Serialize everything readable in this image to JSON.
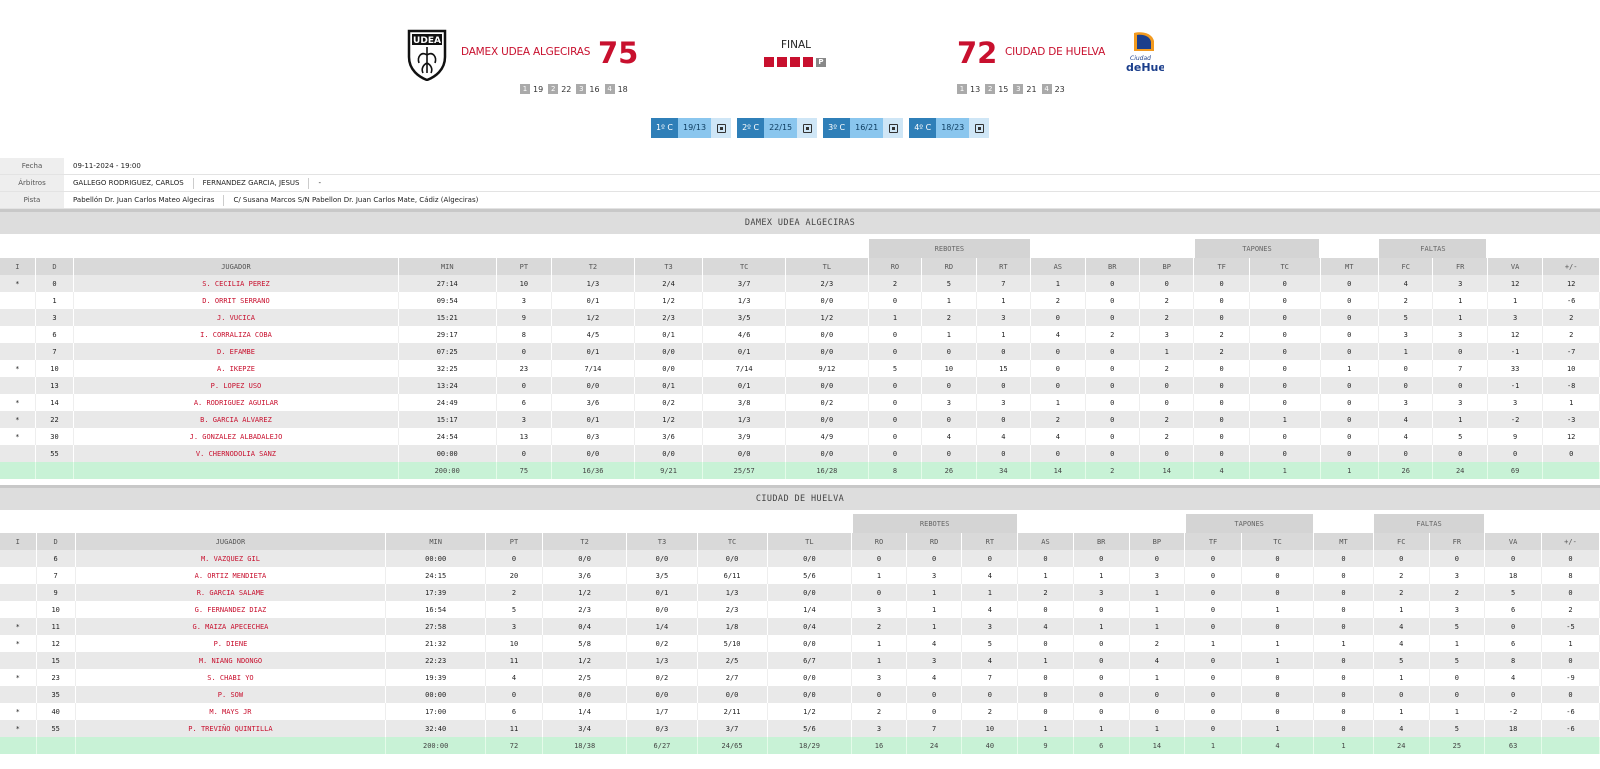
{
  "header": {
    "home": {
      "name": "DAMEX UDEA ALGECIRAS",
      "score": "75",
      "partials": [
        {
          "q": "1",
          "v": "19"
        },
        {
          "q": "2",
          "v": "22"
        },
        {
          "q": "3",
          "v": "16"
        },
        {
          "q": "4",
          "v": "18"
        }
      ]
    },
    "away": {
      "name": "CIUDAD DE HUELVA",
      "score": "72",
      "partials": [
        {
          "q": "1",
          "v": "13"
        },
        {
          "q": "2",
          "v": "15"
        },
        {
          "q": "3",
          "v": "21"
        },
        {
          "q": "4",
          "v": "23"
        }
      ]
    },
    "status": "FINAL",
    "period_marker": "P",
    "quarter_buttons": [
      {
        "label": "1º C",
        "score": "19/13"
      },
      {
        "label": "2º C",
        "score": "22/15"
      },
      {
        "label": "3º C",
        "score": "16/21"
      },
      {
        "label": "4º C",
        "score": "18/23"
      }
    ]
  },
  "info": {
    "fecha_label": "Fecha",
    "fecha": "09-11-2024 - 19:00",
    "arbitros_label": "Árbitros",
    "arbitros": [
      "GALLEGO RODRIGUEZ, CARLOS",
      "FERNANDEZ GARCIA, JESUS",
      "-"
    ],
    "pista_label": "Pista",
    "pista": [
      "Pabellón Dr. Juan Carlos Mateo Algeciras",
      "C/ Susana Marcos S/N Pabellon Dr. Juan Carlos Mate, Cádiz (Algeciras)"
    ]
  },
  "table_headers": {
    "groups": {
      "rebotes": "REBOTES",
      "tapones": "TAPONES",
      "faltas": "FALTAS"
    },
    "columns": [
      "I",
      "D",
      "JUGADOR",
      "MIN",
      "PT",
      "T2",
      "T3",
      "TC",
      "TL",
      "RO",
      "RD",
      "RT",
      "AS",
      "BR",
      "BP",
      "TF",
      "TC",
      "MT",
      "FC",
      "FR",
      "VA",
      "+/-"
    ]
  },
  "teams": [
    {
      "title": "DAMEX UDEA ALGECIRAS",
      "players": [
        [
          "*",
          "0",
          "S. CECILIA PEREZ",
          "27:14",
          "10",
          "1/3",
          "2/4",
          "3/7",
          "2/3",
          "2",
          "5",
          "7",
          "1",
          "0",
          "0",
          "0",
          "0",
          "0",
          "4",
          "3",
          "12",
          "12"
        ],
        [
          "",
          "1",
          "D. ORRIT SERRANO",
          "09:54",
          "3",
          "0/1",
          "1/2",
          "1/3",
          "0/0",
          "0",
          "1",
          "1",
          "2",
          "0",
          "2",
          "0",
          "0",
          "0",
          "2",
          "1",
          "1",
          "-6"
        ],
        [
          "",
          "3",
          "J. VUCICA",
          "15:21",
          "9",
          "1/2",
          "2/3",
          "3/5",
          "1/2",
          "1",
          "2",
          "3",
          "0",
          "0",
          "2",
          "0",
          "0",
          "0",
          "5",
          "1",
          "3",
          "2"
        ],
        [
          "",
          "6",
          "I. CORRALIZA COBA",
          "29:17",
          "8",
          "4/5",
          "0/1",
          "4/6",
          "0/0",
          "0",
          "1",
          "1",
          "4",
          "2",
          "3",
          "2",
          "0",
          "0",
          "3",
          "3",
          "12",
          "2"
        ],
        [
          "",
          "7",
          "D. EFAMBE",
          "07:25",
          "0",
          "0/1",
          "0/0",
          "0/1",
          "0/0",
          "0",
          "0",
          "0",
          "0",
          "0",
          "1",
          "2",
          "0",
          "0",
          "1",
          "0",
          "-1",
          "-7"
        ],
        [
          "*",
          "10",
          "A. IKEPZE",
          "32:25",
          "23",
          "7/14",
          "0/0",
          "7/14",
          "9/12",
          "5",
          "10",
          "15",
          "0",
          "0",
          "2",
          "0",
          "0",
          "1",
          "0",
          "7",
          "33",
          "10"
        ],
        [
          "",
          "13",
          "P. LOPEZ USO",
          "13:24",
          "0",
          "0/0",
          "0/1",
          "0/1",
          "0/0",
          "0",
          "0",
          "0",
          "0",
          "0",
          "0",
          "0",
          "0",
          "0",
          "0",
          "0",
          "-1",
          "-8"
        ],
        [
          "*",
          "14",
          "A. RODRIGUEZ AGUILAR",
          "24:49",
          "6",
          "3/6",
          "0/2",
          "3/8",
          "0/2",
          "0",
          "3",
          "3",
          "1",
          "0",
          "0",
          "0",
          "0",
          "0",
          "3",
          "3",
          "3",
          "1"
        ],
        [
          "*",
          "22",
          "B. GARCIA ALVAREZ",
          "15:17",
          "3",
          "0/1",
          "1/2",
          "1/3",
          "0/0",
          "0",
          "0",
          "0",
          "2",
          "0",
          "2",
          "0",
          "1",
          "0",
          "4",
          "1",
          "-2",
          "-3"
        ],
        [
          "*",
          "30",
          "J. GONZALEZ ALBADALEJO",
          "24:54",
          "13",
          "0/3",
          "3/6",
          "3/9",
          "4/9",
          "0",
          "4",
          "4",
          "4",
          "0",
          "2",
          "0",
          "0",
          "0",
          "4",
          "5",
          "9",
          "12"
        ],
        [
          "",
          "55",
          "V. CHERNODOLIA SANZ",
          "00:00",
          "0",
          "0/0",
          "0/0",
          "0/0",
          "0/0",
          "0",
          "0",
          "0",
          "0",
          "0",
          "0",
          "0",
          "0",
          "0",
          "0",
          "0",
          "0",
          "0"
        ]
      ],
      "totals": [
        "",
        "",
        "",
        "200:00",
        "75",
        "16/36",
        "9/21",
        "25/57",
        "16/28",
        "8",
        "26",
        "34",
        "14",
        "2",
        "14",
        "4",
        "1",
        "1",
        "26",
        "24",
        "69",
        ""
      ]
    },
    {
      "title": "CIUDAD DE HUELVA",
      "players": [
        [
          "",
          "6",
          "M. VAZQUEZ GIL",
          "00:00",
          "0",
          "0/0",
          "0/0",
          "0/0",
          "0/0",
          "0",
          "0",
          "0",
          "0",
          "0",
          "0",
          "0",
          "0",
          "0",
          "0",
          "0",
          "0",
          "0"
        ],
        [
          "",
          "7",
          "A. ORTIZ MENDIETA",
          "24:15",
          "20",
          "3/6",
          "3/5",
          "6/11",
          "5/6",
          "1",
          "3",
          "4",
          "1",
          "1",
          "3",
          "0",
          "0",
          "0",
          "2",
          "3",
          "18",
          "8"
        ],
        [
          "",
          "9",
          "R. GARCIA SALAME",
          "17:39",
          "2",
          "1/2",
          "0/1",
          "1/3",
          "0/0",
          "0",
          "1",
          "1",
          "2",
          "3",
          "1",
          "0",
          "0",
          "0",
          "2",
          "2",
          "5",
          "0"
        ],
        [
          "",
          "10",
          "G. FERNANDEZ DIAZ",
          "16:54",
          "5",
          "2/3",
          "0/0",
          "2/3",
          "1/4",
          "3",
          "1",
          "4",
          "0",
          "0",
          "1",
          "0",
          "1",
          "0",
          "1",
          "3",
          "6",
          "2"
        ],
        [
          "*",
          "11",
          "G. MAIZA APECECHEA",
          "27:58",
          "3",
          "0/4",
          "1/4",
          "1/8",
          "0/4",
          "2",
          "1",
          "3",
          "4",
          "1",
          "1",
          "0",
          "0",
          "0",
          "4",
          "5",
          "0",
          "-5"
        ],
        [
          "*",
          "12",
          "P. DIENE",
          "21:32",
          "10",
          "5/8",
          "0/2",
          "5/10",
          "0/0",
          "1",
          "4",
          "5",
          "0",
          "0",
          "2",
          "1",
          "1",
          "1",
          "4",
          "1",
          "6",
          "1"
        ],
        [
          "",
          "15",
          "M. NIANG NDONGO",
          "22:23",
          "11",
          "1/2",
          "1/3",
          "2/5",
          "6/7",
          "1",
          "3",
          "4",
          "1",
          "0",
          "4",
          "0",
          "1",
          "0",
          "5",
          "5",
          "8",
          "0"
        ],
        [
          "*",
          "23",
          "S. CHABI YO",
          "19:39",
          "4",
          "2/5",
          "0/2",
          "2/7",
          "0/0",
          "3",
          "4",
          "7",
          "0",
          "0",
          "1",
          "0",
          "0",
          "0",
          "1",
          "0",
          "4",
          "-9"
        ],
        [
          "",
          "35",
          "P. SOW",
          "00:00",
          "0",
          "0/0",
          "0/0",
          "0/0",
          "0/0",
          "0",
          "0",
          "0",
          "0",
          "0",
          "0",
          "0",
          "0",
          "0",
          "0",
          "0",
          "0",
          "0"
        ],
        [
          "*",
          "40",
          "M. MAYS JR",
          "17:00",
          "6",
          "1/4",
          "1/7",
          "2/11",
          "1/2",
          "2",
          "0",
          "2",
          "0",
          "0",
          "0",
          "0",
          "0",
          "0",
          "1",
          "1",
          "-2",
          "-6"
        ],
        [
          "*",
          "55",
          "P. TREVIÑO QUINTILLA",
          "32:40",
          "11",
          "3/4",
          "0/3",
          "3/7",
          "5/6",
          "3",
          "7",
          "10",
          "1",
          "1",
          "1",
          "0",
          "1",
          "0",
          "4",
          "5",
          "18",
          "-6"
        ]
      ],
      "totals": [
        "",
        "",
        "",
        "200:00",
        "72",
        "18/38",
        "6/27",
        "24/65",
        "18/29",
        "16",
        "24",
        "40",
        "9",
        "6",
        "14",
        "1",
        "4",
        "1",
        "24",
        "25",
        "63",
        ""
      ]
    }
  ]
}
